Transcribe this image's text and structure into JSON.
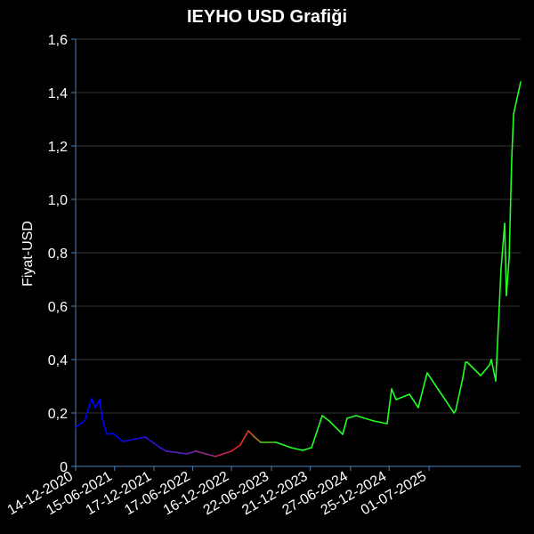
{
  "chart_data": {
    "type": "line",
    "title": "IEYHO USD Grafiği",
    "xlabel": "",
    "ylabel": "Fiyat-USD",
    "ylim": [
      0,
      1.6
    ],
    "xlim": [
      "2020-12-14",
      "2026-09-04"
    ],
    "grid": true,
    "yticks": [
      "0",
      "0,2",
      "0,4",
      "0,6",
      "0,8",
      "1,0",
      "1,2",
      "1,4",
      "1,6"
    ],
    "ytick_values": [
      0,
      0.2,
      0.4,
      0.6,
      0.8,
      1.0,
      1.2,
      1.4,
      1.6
    ],
    "xticks": [
      "14-12-2020",
      "15-06-2021",
      "17-12-2021",
      "17-06-2022",
      "16-12-2022",
      "22-06-2023",
      "21-12-2023",
      "27-06-2024",
      "25-12-2024",
      "01-07-2025"
    ],
    "colors": {
      "background": "#000000",
      "axis": "#4a7fb5",
      "grid": "#333333",
      "line_start": "#0000ff",
      "line_mid": "#7a2aa0",
      "line_red": "#ff2020",
      "line_end": "#22ff22"
    },
    "series": [
      {
        "x": [
          "2020-12-14",
          "2021-01-25",
          "2021-02-27",
          "2021-03-16",
          "2021-04-06",
          "2021-04-18",
          "2021-05-09",
          "2021-06-08",
          "2021-07-24",
          "2021-11-05",
          "2022-01-15",
          "2022-02-13",
          "2022-05-21",
          "2022-07-01",
          "2022-10-01",
          "2022-12-16",
          "2023-01-26",
          "2023-03-05",
          "2023-03-30",
          "2023-05-02",
          "2023-07-13",
          "2023-09-22",
          "2023-11-15",
          "2023-12-27",
          "2024-02-15",
          "2024-03-19",
          "2024-05-21",
          "2024-06-11",
          "2024-07-23",
          "2024-10-14",
          "2024-12-16",
          "2025-01-06",
          "2025-01-27",
          "2025-03-31",
          "2025-05-11",
          "2025-06-22",
          "2025-08-03",
          "2025-09-14",
          "2025-10-26",
          "2025-11-03",
          "2025-12-06",
          "2025-12-19",
          "2025-12-27",
          "2026-02-28",
          "2026-04-11",
          "2026-04-19",
          "2026-05-10",
          "2026-06-04",
          "2026-06-21",
          "2026-06-29",
          "2026-07-12",
          "2026-07-24",
          "2026-08-02",
          "2026-09-04"
        ],
        "values": [
          0.147,
          0.17,
          0.253,
          0.22,
          0.25,
          0.18,
          0.12,
          0.123,
          0.093,
          0.11,
          0.07,
          0.057,
          0.047,
          0.057,
          0.037,
          0.057,
          0.08,
          0.133,
          0.113,
          0.09,
          0.09,
          0.07,
          0.06,
          0.07,
          0.19,
          0.17,
          0.12,
          0.18,
          0.19,
          0.17,
          0.16,
          0.29,
          0.25,
          0.27,
          0.22,
          0.35,
          0.3,
          0.25,
          0.2,
          0.21,
          0.33,
          0.39,
          0.39,
          0.34,
          0.38,
          0.4,
          0.32,
          0.74,
          0.91,
          0.64,
          0.78,
          1.15,
          1.32,
          1.44
        ]
      }
    ]
  }
}
